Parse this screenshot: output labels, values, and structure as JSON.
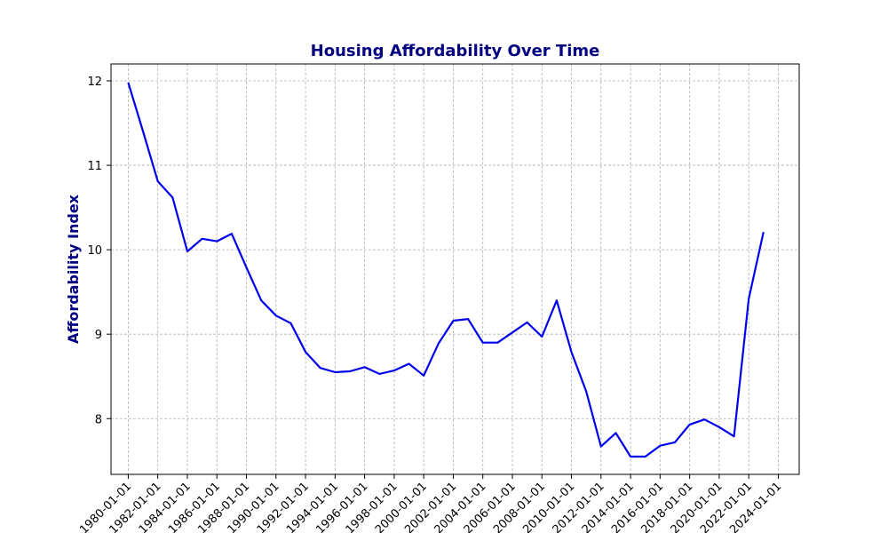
{
  "chart_data": {
    "type": "line",
    "title": "Housing Affordability Over Time",
    "xlabel": "",
    "ylabel": "Affordability Index",
    "ylim": [
      7.34,
      12.2
    ],
    "xlim": [
      "1978-11-01",
      "2025-06-01"
    ],
    "y_ticks": [
      8,
      9,
      10,
      11,
      12
    ],
    "x_ticks": [
      "1980-01-01",
      "1982-01-01",
      "1984-01-01",
      "1986-01-01",
      "1988-01-01",
      "1990-01-01",
      "1992-01-01",
      "1994-01-01",
      "1996-01-01",
      "1998-01-01",
      "2000-01-01",
      "2002-01-01",
      "2004-01-01",
      "2006-01-01",
      "2008-01-01",
      "2010-01-01",
      "2012-01-01",
      "2014-01-01",
      "2016-01-01",
      "2018-01-01",
      "2020-01-01",
      "2022-01-01",
      "2024-01-01"
    ],
    "grid": true,
    "line_color": "#0000ee",
    "title_color": "#000080",
    "x": [
      "1980-01-01",
      "1981-01-01",
      "1982-01-01",
      "1983-01-01",
      "1984-01-01",
      "1985-01-01",
      "1986-01-01",
      "1987-01-01",
      "1988-01-01",
      "1989-01-01",
      "1990-01-01",
      "1991-01-01",
      "1992-01-01",
      "1993-01-01",
      "1994-01-01",
      "1995-01-01",
      "1996-01-01",
      "1997-01-01",
      "1998-01-01",
      "1999-01-01",
      "2000-01-01",
      "2001-01-01",
      "2002-01-01",
      "2003-01-01",
      "2004-01-01",
      "2005-01-01",
      "2006-01-01",
      "2007-01-01",
      "2008-01-01",
      "2009-01-01",
      "2010-01-01",
      "2011-01-01",
      "2012-01-01",
      "2013-01-01",
      "2014-01-01",
      "2015-01-01",
      "2016-01-01",
      "2017-01-01",
      "2018-01-01",
      "2019-01-01",
      "2020-01-01",
      "2021-01-01",
      "2022-01-01",
      "2023-01-01"
    ],
    "series": [
      {
        "values": [
          11.98,
          11.4,
          10.81,
          10.62,
          9.98,
          10.13,
          10.1,
          10.19,
          9.79,
          9.4,
          9.22,
          9.13,
          8.79,
          8.6,
          8.55,
          8.56,
          8.61,
          8.53,
          8.57,
          8.65,
          8.51,
          8.89,
          9.16,
          9.18,
          8.9,
          8.9,
          9.02,
          9.14,
          8.97,
          9.4,
          8.79,
          8.32,
          7.67,
          7.83,
          7.55,
          7.55,
          7.68,
          7.72,
          7.93,
          7.99,
          7.9,
          7.79,
          9.42,
          10.21
        ]
      }
    ]
  }
}
